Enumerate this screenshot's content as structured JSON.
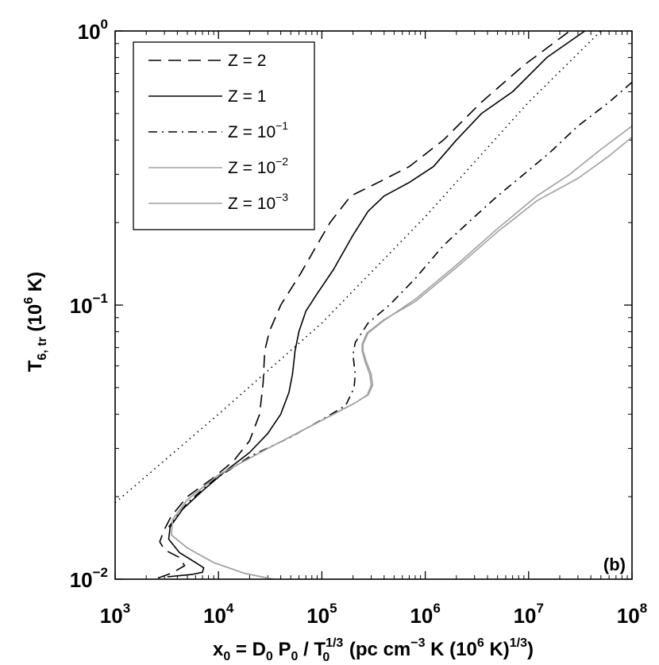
{
  "chart_data": {
    "type": "line",
    "panel_label": "(b)",
    "xscale": "log",
    "yscale": "log",
    "xlim": [
      1000,
      100000000
    ],
    "ylim": [
      0.01,
      1
    ],
    "grid": false,
    "legend_position": "top-left",
    "x_ticks": [
      {
        "base": "10",
        "exp": "3"
      },
      {
        "base": "10",
        "exp": "4"
      },
      {
        "base": "10",
        "exp": "5"
      },
      {
        "base": "10",
        "exp": "6"
      },
      {
        "base": "10",
        "exp": "7"
      },
      {
        "base": "10",
        "exp": "8"
      }
    ],
    "y_ticks": [
      {
        "base": "10",
        "exp": "−2"
      },
      {
        "base": "10",
        "exp": "−1"
      },
      {
        "base": "10",
        "exp": "0"
      }
    ],
    "xlabel": {
      "p1": "x",
      "p1_sub": "0",
      "p2": " = D",
      "p2_sub": "0",
      "p3": " P",
      "p3_sub": "0",
      "p4": " / T",
      "p4_sup": "1/3",
      "p4_sub": "0",
      "p5": "   (pc  cm",
      "p5_sup": "−3",
      "p6": " K  (10",
      "p6_sup": "6",
      "p7": " K)",
      "p7_sup": "1/3",
      "p8": ")"
    },
    "ylabel": {
      "p1": "T",
      "p1_sub": "6, tr",
      "p2": " (10",
      "p2_sup": "6",
      "p3": " K)"
    },
    "series": [
      {
        "legend": {
          "base": "Z = 2",
          "exp": ""
        },
        "style": "dashed",
        "color": "#000000",
        "points": [
          [
            2600,
            0.0101
          ],
          [
            3500,
            0.0105
          ],
          [
            4700,
            0.0112
          ],
          [
            4200,
            0.012
          ],
          [
            3000,
            0.0128
          ],
          [
            2700,
            0.0137
          ],
          [
            3000,
            0.0152
          ],
          [
            3500,
            0.017
          ],
          [
            5000,
            0.02
          ],
          [
            9000,
            0.0235
          ],
          [
            14000,
            0.027
          ],
          [
            20000,
            0.032
          ],
          [
            25000,
            0.04
          ],
          [
            27000,
            0.052
          ],
          [
            28000,
            0.068
          ],
          [
            31000,
            0.08
          ],
          [
            40000,
            0.1
          ],
          [
            62000,
            0.13
          ],
          [
            85000,
            0.16
          ],
          [
            120000,
            0.2
          ],
          [
            190000,
            0.25
          ],
          [
            350000,
            0.28
          ],
          [
            700000,
            0.32
          ],
          [
            1500000,
            0.4
          ],
          [
            3500000,
            0.55
          ],
          [
            9000000,
            0.75
          ],
          [
            25000000,
            1.0
          ]
        ]
      },
      {
        "legend": {
          "base": "Z = 1",
          "exp": ""
        },
        "style": "solid",
        "color": "#000000",
        "points": [
          [
            3200,
            0.0102
          ],
          [
            5500,
            0.0104
          ],
          [
            7000,
            0.0106
          ],
          [
            7200,
            0.011
          ],
          [
            6000,
            0.0115
          ],
          [
            4200,
            0.0125
          ],
          [
            3300,
            0.014
          ],
          [
            3400,
            0.0155
          ],
          [
            4500,
            0.018
          ],
          [
            7000,
            0.021
          ],
          [
            12000,
            0.025
          ],
          [
            20000,
            0.029
          ],
          [
            30000,
            0.034
          ],
          [
            40000,
            0.04
          ],
          [
            48000,
            0.048
          ],
          [
            52000,
            0.056
          ],
          [
            55000,
            0.068
          ],
          [
            60000,
            0.08
          ],
          [
            70000,
            0.095
          ],
          [
            90000,
            0.11
          ],
          [
            130000,
            0.135
          ],
          [
            200000,
            0.18
          ],
          [
            280000,
            0.22
          ],
          [
            400000,
            0.25
          ],
          [
            700000,
            0.28
          ],
          [
            1200000,
            0.32
          ],
          [
            2000000,
            0.4
          ],
          [
            3500000,
            0.5
          ],
          [
            7000000,
            0.6
          ],
          [
            15000000,
            0.8
          ],
          [
            35000000,
            1.0
          ]
        ]
      },
      {
        "legend": {
          "base": "Z = 10",
          "exp": "−1"
        },
        "style": "dashdot",
        "color": "#000000",
        "points": [
          [
            3300,
            0.0155
          ],
          [
            5000,
            0.019
          ],
          [
            9000,
            0.023
          ],
          [
            20000,
            0.028
          ],
          [
            50000,
            0.033
          ],
          [
            110000,
            0.039
          ],
          [
            170000,
            0.043
          ],
          [
            205000,
            0.05
          ],
          [
            210000,
            0.056
          ],
          [
            200000,
            0.066
          ],
          [
            210000,
            0.073
          ],
          [
            280000,
            0.086
          ],
          [
            450000,
            0.1
          ],
          [
            800000,
            0.125
          ],
          [
            1500000,
            0.165
          ],
          [
            3000000,
            0.21
          ],
          [
            5000000,
            0.25
          ],
          [
            9000000,
            0.3
          ],
          [
            16000000,
            0.36
          ],
          [
            30000000,
            0.45
          ],
          [
            60000000,
            0.55
          ],
          [
            100000000,
            0.65
          ]
        ]
      },
      {
        "legend": {
          "base": "Z = 10",
          "exp": "−2"
        },
        "style": "solid",
        "color": "#a0a0a0",
        "points": [
          [
            34000,
            0.01
          ],
          [
            18000,
            0.0105
          ],
          [
            9000,
            0.0115
          ],
          [
            5000,
            0.013
          ],
          [
            3500,
            0.0145
          ],
          [
            3600,
            0.0165
          ],
          [
            5000,
            0.0195
          ],
          [
            10000,
            0.024
          ],
          [
            30000,
            0.03
          ],
          [
            100000,
            0.038
          ],
          [
            210000,
            0.044
          ],
          [
            280000,
            0.047
          ],
          [
            310000,
            0.051
          ],
          [
            300000,
            0.056
          ],
          [
            270000,
            0.062
          ],
          [
            250000,
            0.068
          ],
          [
            250000,
            0.072
          ],
          [
            280000,
            0.079
          ],
          [
            400000,
            0.088
          ],
          [
            800000,
            0.105
          ],
          [
            2000000,
            0.14
          ],
          [
            5000000,
            0.19
          ],
          [
            12000000,
            0.25
          ],
          [
            25000000,
            0.3
          ],
          [
            50000000,
            0.37
          ],
          [
            100000000,
            0.45
          ]
        ]
      },
      {
        "legend": {
          "base": "Z = 10",
          "exp": "−3"
        },
        "style": "solid",
        "color": "#a0a0a0",
        "points": [
          [
            34000,
            0.01
          ],
          [
            18000,
            0.0105
          ],
          [
            9000,
            0.0115
          ],
          [
            5000,
            0.013
          ],
          [
            3500,
            0.0145
          ],
          [
            3600,
            0.0165
          ],
          [
            5000,
            0.0195
          ],
          [
            10000,
            0.024
          ],
          [
            30000,
            0.03
          ],
          [
            100000,
            0.038
          ],
          [
            210000,
            0.044
          ],
          [
            275000,
            0.047
          ],
          [
            300000,
            0.051
          ],
          [
            290000,
            0.056
          ],
          [
            262000,
            0.062
          ],
          [
            245000,
            0.068
          ],
          [
            245000,
            0.072
          ],
          [
            272000,
            0.079
          ],
          [
            390000,
            0.088
          ],
          [
            800000,
            0.103
          ],
          [
            2000000,
            0.137
          ],
          [
            5000000,
            0.185
          ],
          [
            12000000,
            0.24
          ],
          [
            30000000,
            0.29
          ],
          [
            60000000,
            0.35
          ],
          [
            100000000,
            0.41
          ]
        ]
      },
      {
        "legend": null,
        "style": "dotted",
        "color": "#000000",
        "points": [
          [
            1000,
            0.019
          ],
          [
            10000,
            0.04
          ],
          [
            100000,
            0.086
          ],
          [
            1000000,
            0.21
          ],
          [
            10000000,
            0.55
          ],
          [
            50000000,
            1.0
          ]
        ]
      }
    ]
  }
}
